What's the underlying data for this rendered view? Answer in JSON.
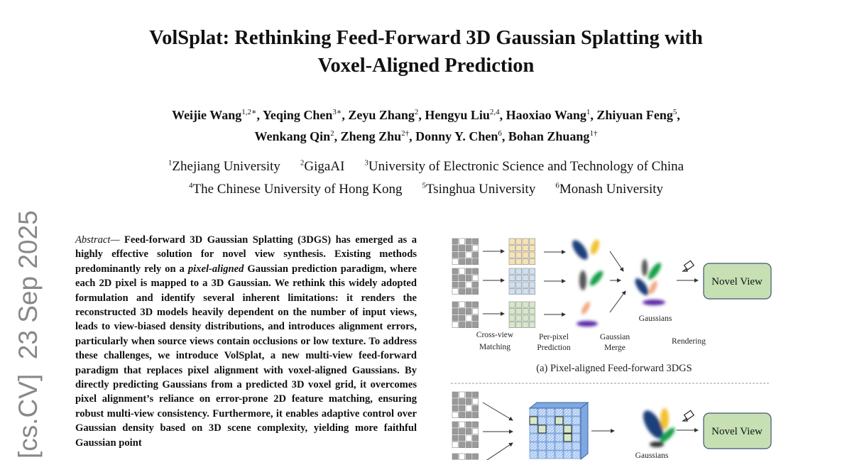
{
  "title": [
    "VolSplat: Rethinking Feed-Forward 3D Gaussian Splatting with",
    "Voxel-Aligned Prediction"
  ],
  "authors_line1": [
    {
      "name": "Weijie Wang",
      "sup": "1,2∗"
    },
    {
      "name": "Yeqing Chen",
      "sup": "3∗"
    },
    {
      "name": "Zeyu Zhang",
      "sup": "2"
    },
    {
      "name": "Hengyu Liu",
      "sup": "2,4"
    },
    {
      "name": "Haoxiao Wang",
      "sup": "1"
    },
    {
      "name": "Zhiyuan Feng",
      "sup": "5"
    }
  ],
  "authors_line2": [
    {
      "name": "Wenkang Qin",
      "sup": "2"
    },
    {
      "name": "Zheng Zhu",
      "sup": "2†"
    },
    {
      "name": "Donny Y. Chen",
      "sup": "6"
    },
    {
      "name": "Bohan Zhuang",
      "sup": "1†"
    }
  ],
  "affiliations_line1": [
    {
      "sup": "1",
      "name": "Zhejiang University"
    },
    {
      "sup": "2",
      "name": "GigaAI"
    },
    {
      "sup": "3",
      "name": "University of Electronic Science and Technology of China"
    }
  ],
  "affiliations_line2": [
    {
      "sup": "4",
      "name": "The Chinese University of Hong Kong"
    },
    {
      "sup": "5",
      "name": "Tsinghua University"
    },
    {
      "sup": "6",
      "name": "Monash University"
    }
  ],
  "arxiv_stamp": "[cs.CV]  23 Sep 2025",
  "abstract": {
    "label": "Abstract—",
    "text_before_italic": " Feed-forward 3D Gaussian Splatting (3DGS) has emerged as a highly effective solution for novel view synthesis. Existing methods predominantly rely on a ",
    "italic": "pixel-aligned",
    "text_after_italic": " Gaussian prediction paradigm, where each 2D pixel is mapped to a 3D Gaussian. We rethink this widely adopted formulation and identify several inherent limitations: it renders the reconstructed 3D models heavily dependent on the number of input views, leads to view-biased density distributions, and introduces alignment errors, particularly when source views contain occlusions or low texture. To address these challenges, we introduce VolSplat, a new multi-view feed-forward paradigm that replaces pixel alignment with voxel-aligned Gaussians. By directly predicting Gaussians from a predicted 3D voxel grid, it overcomes pixel alignment’s reliance on error-prone 2D feature matching, ensuring robust multi-view consistency. Furthermore, it enables adaptive control over Gaussian density based on 3D scene complexity, yielding more faithful Gaussian point"
  },
  "figure": {
    "panel_a": {
      "labels": {
        "cross_view": [
          "Cross-view",
          "Matching"
        ],
        "per_pixel": [
          "Per-pixel",
          "Prediction"
        ],
        "merge": [
          "Gaussian",
          "Merge"
        ],
        "gaussians": "Gaussians",
        "rendering": "Rendering"
      },
      "output": "Novel View",
      "caption": "(a) Pixel-aligned Feed-forward 3DGS"
    },
    "panel_b": {
      "output": "Novel View",
      "gaussians": "Gaussians"
    },
    "colors": {
      "yellow_grid": "#f8e3b4",
      "blue_grid": "#cfe0f3",
      "green_grid": "#d6e8c8",
      "novel_view_fill": "#c6e0b4",
      "novel_view_border": "#3f5570",
      "voxel_blue": "#7ea8e0"
    }
  }
}
